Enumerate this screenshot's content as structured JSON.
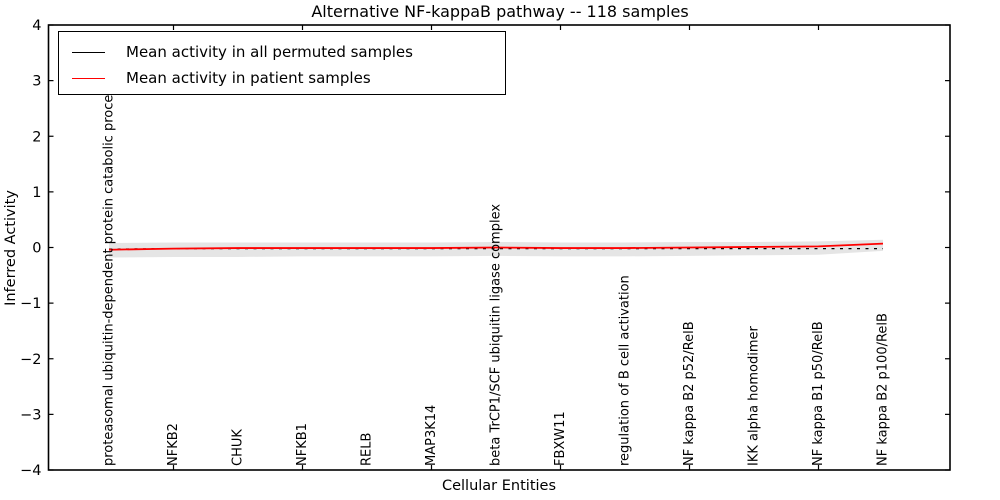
{
  "window": {
    "title": "Alternative NF-kappaB pathway -- 118 samples"
  },
  "legend": {
    "entries": [
      {
        "label": "Mean activity in all permuted samples",
        "color": "#000000"
      },
      {
        "label": "Mean activity in patient samples",
        "color": "#ff0000"
      }
    ]
  },
  "chart_data": {
    "type": "line",
    "title": "Alternative NF-kappaB pathway -- 118 samples",
    "xlabel": "Cellular Entities",
    "ylabel": "Inferred Activity",
    "ylim": [
      -4,
      4
    ],
    "yticks": [
      4,
      3,
      2,
      1,
      0,
      -1,
      -2,
      -3,
      -4
    ],
    "grid": false,
    "legend_position": "upper left",
    "categories": [
      "proteasomal ubiquitin-dependent protein catabolic process",
      "NFKB2",
      "CHUK",
      "NFKB1",
      "RELB",
      "MAP3K14",
      "beta TrCP1/SCF ubiquitin ligase complex",
      "FBXW11",
      "regulation of B cell activation",
      "NF kappa B2 p52/RelB",
      "IKK alpha homodimer",
      "NF kappa B1 p50/RelB",
      "NF kappa B2 p100/RelB"
    ],
    "series": [
      {
        "name": "Mean activity in all permuted samples",
        "color": "#000000",
        "linestyle": "dashed",
        "values": [
          -0.03,
          -0.02,
          -0.02,
          -0.02,
          -0.02,
          -0.02,
          -0.02,
          -0.02,
          -0.02,
          -0.02,
          -0.02,
          -0.02,
          -0.02
        ]
      },
      {
        "name": "Mean activity in patient samples",
        "color": "#ff0000",
        "linestyle": "solid",
        "values": [
          -0.04,
          -0.02,
          -0.01,
          -0.01,
          -0.01,
          -0.01,
          0.0,
          -0.01,
          -0.01,
          0.0,
          0.01,
          0.02,
          0.07
        ]
      }
    ],
    "band": {
      "name": "permuted std band",
      "color": "#e0e0e0",
      "upper": [
        0.08,
        0.09,
        0.09,
        0.09,
        0.09,
        0.09,
        0.1,
        0.09,
        0.09,
        0.1,
        0.1,
        0.11,
        0.14
      ],
      "lower": [
        -0.18,
        -0.17,
        -0.17,
        -0.16,
        -0.16,
        -0.16,
        -0.15,
        -0.16,
        -0.16,
        -0.15,
        -0.14,
        -0.13,
        -0.06
      ]
    }
  }
}
